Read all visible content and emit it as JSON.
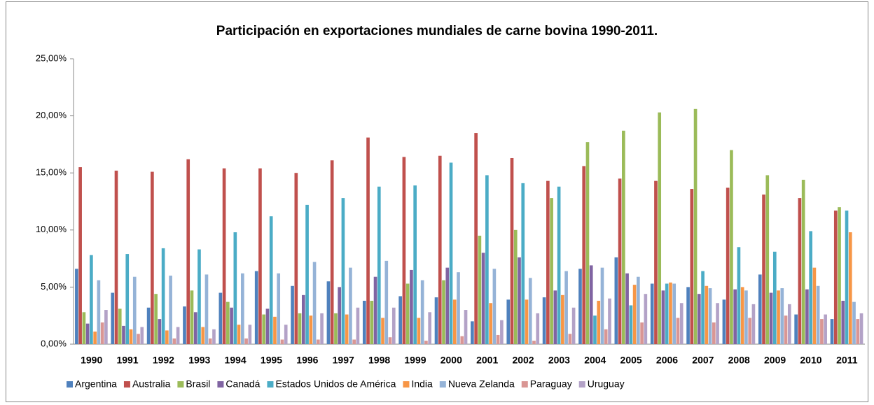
{
  "chart_data": {
    "type": "bar",
    "title": "Participación en exportaciones mundiales de carne bovina 1990-2011.",
    "categories": [
      "1990",
      "1991",
      "1992",
      "1993",
      "1994",
      "1995",
      "1996",
      "1997",
      "1998",
      "1999",
      "2000",
      "2001",
      "2002",
      "2003",
      "2004",
      "2005",
      "2006",
      "2007",
      "2008",
      "2009",
      "2010",
      "2011"
    ],
    "series": [
      {
        "name": "Argentina",
        "color": "#4f81bd",
        "values": [
          6.6,
          4.5,
          3.2,
          3.3,
          4.5,
          6.4,
          5.1,
          5.5,
          3.8,
          4.2,
          4.1,
          2.0,
          3.9,
          4.1,
          6.6,
          7.6,
          5.3,
          5.0,
          3.9,
          6.1,
          2.6,
          2.2
        ]
      },
      {
        "name": "Australia",
        "color": "#c0504d",
        "values": [
          15.5,
          15.2,
          15.1,
          16.2,
          15.4,
          15.4,
          15.0,
          16.1,
          18.1,
          16.4,
          16.5,
          18.5,
          16.3,
          14.3,
          15.6,
          14.5,
          14.3,
          13.6,
          13.7,
          13.1,
          12.8,
          11.7
        ]
      },
      {
        "name": "Brasil",
        "color": "#9bbb59",
        "values": [
          2.8,
          3.1,
          4.4,
          4.7,
          3.7,
          2.6,
          2.7,
          2.7,
          3.8,
          5.3,
          5.6,
          9.5,
          10.0,
          12.8,
          17.7,
          18.7,
          20.3,
          20.6,
          17.0,
          14.8,
          14.4,
          12.0
        ]
      },
      {
        "name": "Canadá",
        "color": "#8064a2",
        "values": [
          1.8,
          1.6,
          2.2,
          2.8,
          3.2,
          3.1,
          4.3,
          5.0,
          5.9,
          6.5,
          6.7,
          8.0,
          7.6,
          4.7,
          6.9,
          6.2,
          4.7,
          4.4,
          4.8,
          4.5,
          4.8,
          3.8
        ]
      },
      {
        "name": "Estados Unidos de América",
        "color": "#4bacc6",
        "values": [
          7.8,
          7.9,
          8.4,
          8.3,
          9.8,
          11.2,
          12.2,
          12.8,
          13.8,
          13.9,
          15.9,
          14.8,
          14.1,
          13.8,
          2.5,
          3.4,
          5.3,
          6.4,
          8.5,
          8.1,
          9.9,
          11.7
        ]
      },
      {
        "name": "India",
        "color": "#f79646",
        "values": [
          1.1,
          1.3,
          1.2,
          1.5,
          1.7,
          2.4,
          2.5,
          2.6,
          2.3,
          2.3,
          3.9,
          3.6,
          3.9,
          4.3,
          3.8,
          5.2,
          5.4,
          5.1,
          5.0,
          4.7,
          6.7,
          9.8
        ]
      },
      {
        "name": "Nueva Zelanda",
        "color": "#95b3d7",
        "values": [
          5.6,
          5.9,
          6.0,
          6.1,
          6.2,
          6.2,
          7.2,
          6.7,
          7.3,
          5.6,
          6.3,
          6.6,
          5.8,
          6.4,
          6.7,
          5.9,
          5.3,
          4.9,
          4.7,
          4.9,
          5.1,
          3.7
        ]
      },
      {
        "name": "Paraguay",
        "color": "#d99694",
        "values": [
          1.9,
          0.9,
          0.5,
          0.5,
          0.5,
          0.4,
          0.4,
          0.4,
          0.6,
          0.3,
          0.7,
          0.8,
          0.3,
          0.9,
          1.3,
          1.9,
          2.3,
          1.9,
          2.3,
          2.5,
          2.2,
          2.2
        ]
      },
      {
        "name": "Uruguay",
        "color": "#b3a2c7",
        "values": [
          3.0,
          1.5,
          1.5,
          1.3,
          1.7,
          1.7,
          2.7,
          3.2,
          3.2,
          2.8,
          3.0,
          2.1,
          2.7,
          3.2,
          4.0,
          4.4,
          3.6,
          3.6,
          3.5,
          3.5,
          2.6,
          2.7
        ]
      }
    ],
    "ylim": [
      0,
      25
    ],
    "yticks": [
      {
        "value": 0,
        "label": "0,00%"
      },
      {
        "value": 5,
        "label": "5,00%"
      },
      {
        "value": 10,
        "label": "10,00%"
      },
      {
        "value": 15,
        "label": "15,00%"
      },
      {
        "value": 20,
        "label": "20,00%"
      },
      {
        "value": 25,
        "label": "25,00%"
      }
    ],
    "legend": "bottom"
  }
}
